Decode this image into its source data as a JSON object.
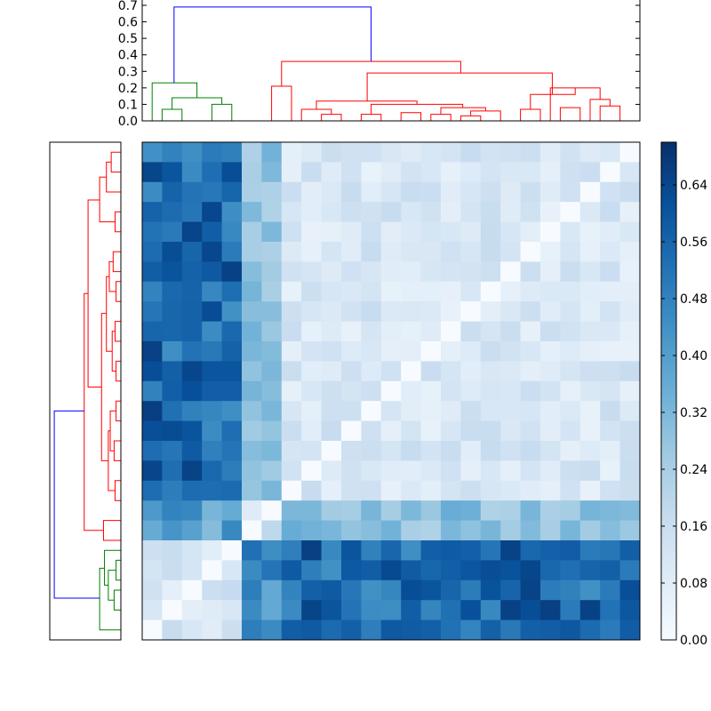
{
  "chart_data": [
    {
      "type": "dendrogram",
      "panel": "top",
      "orientation": "top",
      "ylim": [
        0,
        0.7
      ],
      "yticks": [
        "0.0",
        "0.1",
        "0.2",
        "0.3",
        "0.4",
        "0.5",
        "0.6",
        "0.7"
      ],
      "leaf_count": 25,
      "colors": {
        "blue": "#0000ff",
        "green": "#008000",
        "red": "#ff0000"
      },
      "links": [
        {
          "x": [
            1,
            2
          ],
          "h": 0.07,
          "color": "green"
        },
        {
          "x": [
            3.5,
            4.5
          ],
          "h": 0.1,
          "color": "green"
        },
        {
          "x": [
            1.5,
            4
          ],
          "h": 0.14,
          "color": "green"
        },
        {
          "x": [
            0.5,
            2.75
          ],
          "h": 0.23,
          "color": "green"
        },
        {
          "x": [
            6.5,
            7.5
          ],
          "h": 0.21,
          "color": "red"
        },
        {
          "x": [
            9,
            10
          ],
          "h": 0.04,
          "color": "red"
        },
        {
          "x": [
            8,
            9.5
          ],
          "h": 0.07,
          "color": "red"
        },
        {
          "x": [
            11,
            12
          ],
          "h": 0.04,
          "color": "red"
        },
        {
          "x": [
            13,
            14
          ],
          "h": 0.05,
          "color": "red"
        },
        {
          "x": [
            14.5,
            15.5
          ],
          "h": 0.04,
          "color": "red"
        },
        {
          "x": [
            16,
            17
          ],
          "h": 0.03,
          "color": "red"
        },
        {
          "x": [
            16.5,
            18
          ],
          "h": 0.06,
          "color": "red"
        },
        {
          "x": [
            15,
            17.25
          ],
          "h": 0.08,
          "color": "red"
        },
        {
          "x": [
            11.5,
            16.1
          ],
          "h": 0.1,
          "color": "red"
        },
        {
          "x": [
            8.75,
            13.8
          ],
          "h": 0.12,
          "color": "red"
        },
        {
          "x": [
            19,
            20
          ],
          "h": 0.07,
          "color": "red"
        },
        {
          "x": [
            21,
            22
          ],
          "h": 0.08,
          "color": "red"
        },
        {
          "x": [
            23,
            24
          ],
          "h": 0.09,
          "color": "red"
        },
        {
          "x": [
            22.5,
            23.5
          ],
          "h": 0.13,
          "color": "red"
        },
        {
          "x": [
            20.5,
            23
          ],
          "h": 0.2,
          "color": "red"
        },
        {
          "x": [
            19.5,
            21.75
          ],
          "h": 0.16,
          "color": "red"
        },
        {
          "x": [
            11.3,
            20.6
          ],
          "h": 0.29,
          "color": "red"
        },
        {
          "x": [
            7,
            16
          ],
          "h": 0.36,
          "color": "red"
        },
        {
          "x": [
            1.6,
            11.5
          ],
          "h": 0.69,
          "color": "blue"
        }
      ]
    },
    {
      "type": "dendrogram",
      "panel": "left",
      "orientation": "left",
      "leaf_count": 25,
      "links": [
        {
          "y": [
            0.5,
            1.5
          ],
          "h": 0.1,
          "color": "red"
        },
        {
          "y": [
            1,
            2.5
          ],
          "h": 0.15,
          "color": "red"
        },
        {
          "y": [
            3.5,
            4.5
          ],
          "h": 0.06,
          "color": "red"
        },
        {
          "y": [
            1.75,
            4
          ],
          "h": 0.22,
          "color": "red"
        },
        {
          "y": [
            5.5,
            6.5
          ],
          "h": 0.08,
          "color": "red"
        },
        {
          "y": [
            7,
            8
          ],
          "h": 0.05,
          "color": "red"
        },
        {
          "y": [
            6,
            7.5
          ],
          "h": 0.12,
          "color": "red"
        },
        {
          "y": [
            9,
            10
          ],
          "h": 0.06,
          "color": "red"
        },
        {
          "y": [
            11,
            12
          ],
          "h": 0.05,
          "color": "red"
        },
        {
          "y": [
            9.5,
            11.5
          ],
          "h": 0.09,
          "color": "red"
        },
        {
          "y": [
            6.75,
            10.5
          ],
          "h": 0.15,
          "color": "red"
        },
        {
          "y": [
            13,
            14
          ],
          "h": 0.05,
          "color": "red"
        },
        {
          "y": [
            15,
            16
          ],
          "h": 0.07,
          "color": "red"
        },
        {
          "y": [
            13.5,
            15.5
          ],
          "h": 0.11,
          "color": "red"
        },
        {
          "y": [
            17,
            18
          ],
          "h": 0.06,
          "color": "red"
        },
        {
          "y": [
            14.5,
            17.5
          ],
          "h": 0.13,
          "color": "red"
        },
        {
          "y": [
            8.6,
            16
          ],
          "h": 0.2,
          "color": "red"
        },
        {
          "y": [
            2.9,
            12.3
          ],
          "h": 0.34,
          "color": "red"
        },
        {
          "y": [
            19,
            20
          ],
          "h": 0.18,
          "color": "red"
        },
        {
          "y": [
            7.6,
            19.5
          ],
          "h": 0.38,
          "color": "red"
        },
        {
          "y": [
            21,
            22
          ],
          "h": 0.05,
          "color": "green"
        },
        {
          "y": [
            22.5,
            23.5
          ],
          "h": 0.07,
          "color": "green"
        },
        {
          "y": [
            21.5,
            23
          ],
          "h": 0.13,
          "color": "green"
        },
        {
          "y": [
            20.5,
            22.25
          ],
          "h": 0.17,
          "color": "green"
        },
        {
          "y": [
            21.4,
            24.5
          ],
          "h": 0.22,
          "color": "green"
        },
        {
          "y": [
            13.5,
            22.9
          ],
          "h": 0.69,
          "color": "blue"
        }
      ]
    },
    {
      "type": "heatmap",
      "panel": "main",
      "rows": 25,
      "cols": 25,
      "colormap": "Blues",
      "vmin": 0.0,
      "vmax": 0.7,
      "colorbar_ticks": [
        "0.00",
        "0.08",
        "0.16",
        "0.24",
        "0.32",
        "0.40",
        "0.48",
        "0.56",
        "0.64"
      ],
      "blocks": {
        "green_cluster_size": 5,
        "outlier_rows": [
          18,
          19
        ],
        "outlier_cols": [
          5,
          6
        ],
        "bottom_rows": [
          20,
          21,
          22,
          23,
          24
        ]
      }
    }
  ]
}
